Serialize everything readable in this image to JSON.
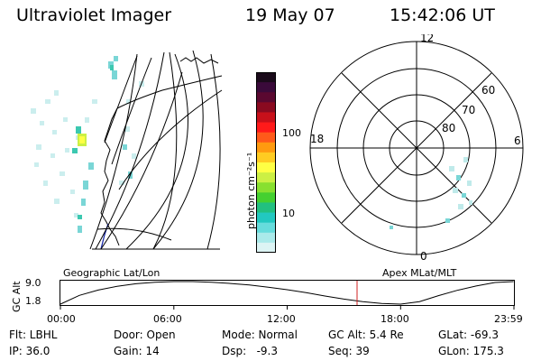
{
  "header": {
    "instrument": "Ultraviolet Imager",
    "date": "19 May 07",
    "time": "15:42:06 UT"
  },
  "colorbar": {
    "label": "photon cm⁻²s⁻¹",
    "ticks": [
      "100",
      "10"
    ],
    "colors": [
      "#1a0a1a",
      "#3a0a3a",
      "#5a0830",
      "#8a0a20",
      "#c8101a",
      "#ff1a1a",
      "#ff5a1a",
      "#ff9a10",
      "#ffcc22",
      "#ffff44",
      "#ccf044",
      "#88e030",
      "#44d030",
      "#22c080",
      "#22c8c0",
      "#66dcdc",
      "#aaeaea",
      "#dcf4f4"
    ]
  },
  "geo_panel": {
    "label": "Geographic Lat/Lon"
  },
  "polar_panel": {
    "label": "Apex MLat/MLT",
    "mlt_labels": {
      "top": "12",
      "left": "18",
      "right": "6",
      "bottom": "0"
    },
    "lat_labels": [
      "60",
      "70",
      "80"
    ]
  },
  "timeline": {
    "ylabel": "GC Alt",
    "yticks": [
      "9.0",
      "1.8"
    ],
    "xticks": [
      "00:00",
      "06:00",
      "12:00",
      "18:00",
      "23:59"
    ]
  },
  "footer": {
    "col1": [
      "Flt: LBHL",
      "IP: 36.0"
    ],
    "col2": [
      "Door: Open",
      "Gain: 14"
    ],
    "col3": [
      "Mode: Normal",
      "Dsp:   -9.3"
    ],
    "col4": [
      "GC Alt: 5.4 Re",
      "Seq: 39"
    ],
    "col5": [
      "GLat: -69.3",
      "GLon: 175.3"
    ]
  },
  "chart_data": {
    "type": "line",
    "title": "",
    "xlabel": "",
    "ylabel": "GC Alt",
    "xlim": [
      0,
      24
    ],
    "ylim": [
      1.8,
      9.0
    ],
    "series": [
      {
        "x": [
          0,
          1,
          2,
          3,
          4,
          5,
          6,
          7,
          8,
          9,
          10,
          11,
          12,
          13,
          14,
          15,
          16,
          17,
          18,
          19,
          20,
          21,
          22,
          23,
          23.98
        ],
        "y": [
          1.8,
          4.6,
          6.3,
          7.5,
          8.3,
          8.8,
          9.0,
          9.0,
          8.8,
          8.4,
          7.9,
          7.2,
          6.4,
          5.5,
          4.4,
          3.4,
          2.6,
          2.0,
          1.8,
          2.6,
          4.5,
          6.2,
          7.6,
          8.7,
          9.0
        ]
      }
    ],
    "current_time_marker": 15.7
  }
}
